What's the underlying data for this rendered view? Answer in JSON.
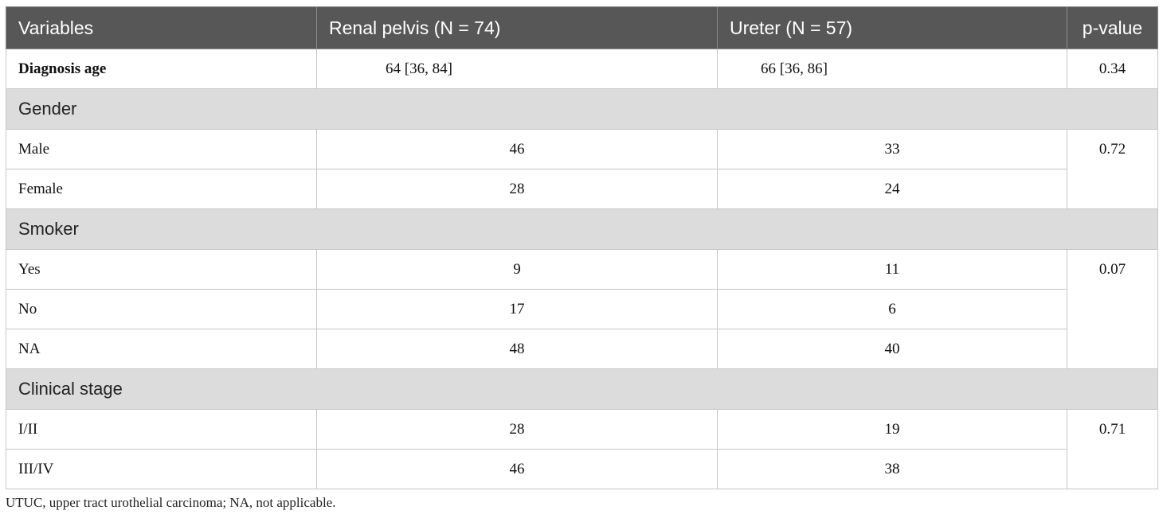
{
  "table": {
    "headers": [
      "Variables",
      "Renal pelvis (N = 74)",
      "Ureter (N = 57)",
      "p-value"
    ],
    "diagnosis_age": {
      "label": "Diagnosis age",
      "renal": "64 [36, 84]",
      "ureter": "66 [36, 86]",
      "p": "0.34"
    },
    "gender": {
      "title": "Gender",
      "p": "0.72",
      "rows": [
        {
          "label": "Male",
          "renal": "46",
          "ureter": "33"
        },
        {
          "label": "Female",
          "renal": "28",
          "ureter": "24"
        }
      ]
    },
    "smoker": {
      "title": "Smoker",
      "p": "0.07",
      "rows": [
        {
          "label": "Yes",
          "renal": "9",
          "ureter": "11"
        },
        {
          "label": "No",
          "renal": "17",
          "ureter": "6"
        },
        {
          "label": "NA",
          "renal": "48",
          "ureter": "40"
        }
      ]
    },
    "stage": {
      "title": "Clinical stage",
      "p": "0.71",
      "rows": [
        {
          "label": "I/II",
          "renal": "28",
          "ureter": "19"
        },
        {
          "label": "III/IV",
          "renal": "46",
          "ureter": "38"
        }
      ]
    }
  },
  "footnote": "UTUC, upper tract urothelial carcinoma; NA, not applicable."
}
